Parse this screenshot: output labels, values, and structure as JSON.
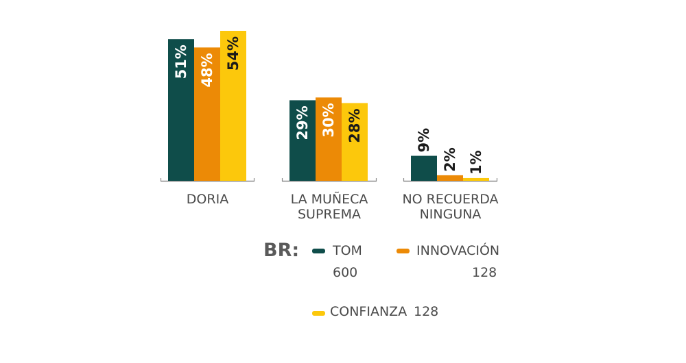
{
  "chart_data": {
    "type": "bar",
    "categories": [
      "DORIA",
      "LA MUÑECA SUPREMA",
      "NO RECUERDA NINGUNA"
    ],
    "category_lines": [
      [
        "DORIA"
      ],
      [
        "LA MUÑECA",
        "SUPREMA"
      ],
      [
        "NO RECUERDA",
        "NINGUNA"
      ]
    ],
    "series": [
      {
        "name": "TOM",
        "values": [
          51,
          29,
          9
        ],
        "labels": [
          "51%",
          "29%",
          "9%"
        ],
        "color": "#0f4d4a"
      },
      {
        "name": "INNOVACIÓN",
        "values": [
          48,
          30,
          2
        ],
        "labels": [
          "48%",
          "30%",
          "2%"
        ],
        "color": "#ec8a06"
      },
      {
        "name": "CONFIANZA",
        "values": [
          54,
          28,
          1
        ],
        "labels": [
          "54%",
          "28%",
          "1%"
        ],
        "color": "#fcc80c"
      }
    ],
    "ylim": [
      0,
      56
    ],
    "label_colors": {
      "inside_on_dark": "#ffffff",
      "inside_on_light": "#1a1a1a",
      "outside": "#1a1a1a"
    },
    "legend": {
      "prefix": "BR:",
      "items": [
        {
          "name": "TOM",
          "count": "600",
          "color": "#0f4d4a"
        },
        {
          "name": "INNOVACIÓN",
          "count": "128",
          "color": "#ec8a06"
        },
        {
          "name": "CONFIANZA",
          "count": "128",
          "color": "#fcc80c"
        }
      ]
    },
    "axis_color": "#8a8a8a",
    "grid": false
  }
}
